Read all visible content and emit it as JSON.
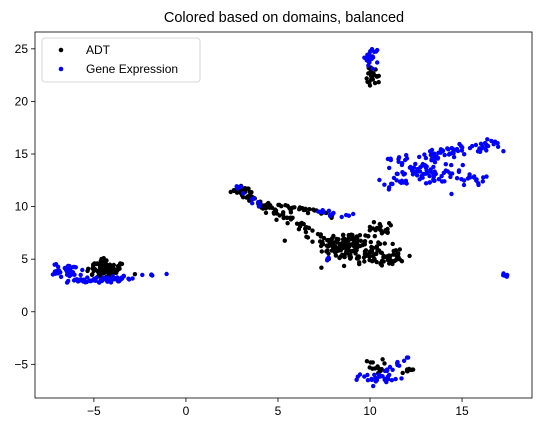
{
  "chart_data": {
    "type": "scatter",
    "title": "Colored based on domains, balanced",
    "xlabel": "",
    "ylabel": "",
    "xlim": [
      -8.2,
      18.8
    ],
    "ylim": [
      -8.2,
      26.6
    ],
    "xticks": [
      -5,
      0,
      5,
      10,
      15
    ],
    "yticks": [
      -5,
      0,
      5,
      10,
      15,
      20,
      25
    ],
    "grid": false,
    "legend_position": "top-left",
    "series": [
      {
        "name": "ADT",
        "color": "#000000",
        "clusters": [
          {
            "cx": -4.3,
            "cy": 3.9,
            "sx": 0.55,
            "sy": 0.45,
            "n": 70
          },
          {
            "cx": -4.6,
            "cy": 4.7,
            "sx": 0.2,
            "sy": 0.25,
            "n": 14
          },
          {
            "cx": 8.6,
            "cy": 6.5,
            "sx": 0.8,
            "sy": 0.55,
            "n": 120
          },
          {
            "cx": 10.0,
            "cy": 5.4,
            "sx": 0.9,
            "sy": 0.45,
            "n": 80
          },
          {
            "cx": 11.0,
            "cy": 4.8,
            "sx": 0.35,
            "sy": 0.25,
            "n": 20
          },
          {
            "cx": 10.6,
            "cy": 8.0,
            "sx": 0.45,
            "sy": 0.35,
            "n": 20
          },
          {
            "cx": 10.2,
            "cy": 22.4,
            "sx": 0.18,
            "sy": 0.45,
            "n": 22
          },
          {
            "cx": 10.2,
            "cy": -5.2,
            "sx": 0.25,
            "sy": 0.35,
            "n": 14
          },
          {
            "cx": 12.1,
            "cy": -5.6,
            "sx": 0.2,
            "sy": 0.12,
            "n": 8
          },
          {
            "cx": 3.0,
            "cy": 11.5,
            "sx": 0.3,
            "sy": 0.15,
            "n": 10
          }
        ],
        "paths": [
          {
            "from": [
              2.6,
              11.7
            ],
            "to": [
              7.3,
              7.2
            ],
            "n": 70,
            "spread": 0.18
          },
          {
            "from": [
              4.0,
              10.3
            ],
            "to": [
              8.2,
              9.2
            ],
            "n": 30,
            "spread": 0.2
          }
        ]
      },
      {
        "name": "Gene Expression",
        "color": "#0000ff",
        "clusters": [
          {
            "cx": -6.4,
            "cy": 3.9,
            "sx": 0.4,
            "sy": 0.35,
            "n": 40
          },
          {
            "cx": -5.0,
            "cy": 3.0,
            "sx": 0.7,
            "sy": 0.12,
            "n": 40
          },
          {
            "cx": -3.7,
            "cy": 3.2,
            "sx": 0.4,
            "sy": 0.15,
            "n": 15
          },
          {
            "cx": -1.8,
            "cy": 3.6,
            "sx": 0.25,
            "sy": 0.1,
            "n": 5
          },
          {
            "cx": 10.1,
            "cy": 24.2,
            "sx": 0.2,
            "sy": 0.5,
            "n": 22
          },
          {
            "cx": 10.4,
            "cy": -6.3,
            "sx": 0.45,
            "sy": 0.2,
            "n": 28
          },
          {
            "cx": 17.4,
            "cy": 3.5,
            "sx": 0.08,
            "sy": 0.1,
            "n": 5
          },
          {
            "cx": 7.7,
            "cy": 5.0,
            "sx": 0.1,
            "sy": 0.15,
            "n": 4
          },
          {
            "cx": 13.2,
            "cy": 13.0,
            "sx": 0.9,
            "sy": 0.6,
            "n": 40
          }
        ],
        "paths": [
          {
            "from": [
              11.0,
              14.3
            ],
            "to": [
              17.4,
              16.0
            ],
            "n": 60,
            "spread": 0.25
          },
          {
            "from": [
              10.7,
              11.7
            ],
            "to": [
              15.0,
              16.0
            ],
            "n": 40,
            "spread": 0.3
          },
          {
            "from": [
              13.2,
              12.6
            ],
            "to": [
              16.5,
              12.6
            ],
            "n": 25,
            "spread": 0.3
          },
          {
            "from": [
              2.7,
              12.1
            ],
            "to": [
              4.0,
              10.0
            ],
            "n": 12,
            "spread": 0.15
          },
          {
            "from": [
              7.0,
              9.6
            ],
            "to": [
              9.3,
              9.0
            ],
            "n": 14,
            "spread": 0.2
          },
          {
            "from": [
              10.5,
              -6.2
            ],
            "to": [
              12.0,
              -4.3
            ],
            "n": 14,
            "spread": 0.12
          }
        ]
      }
    ]
  }
}
